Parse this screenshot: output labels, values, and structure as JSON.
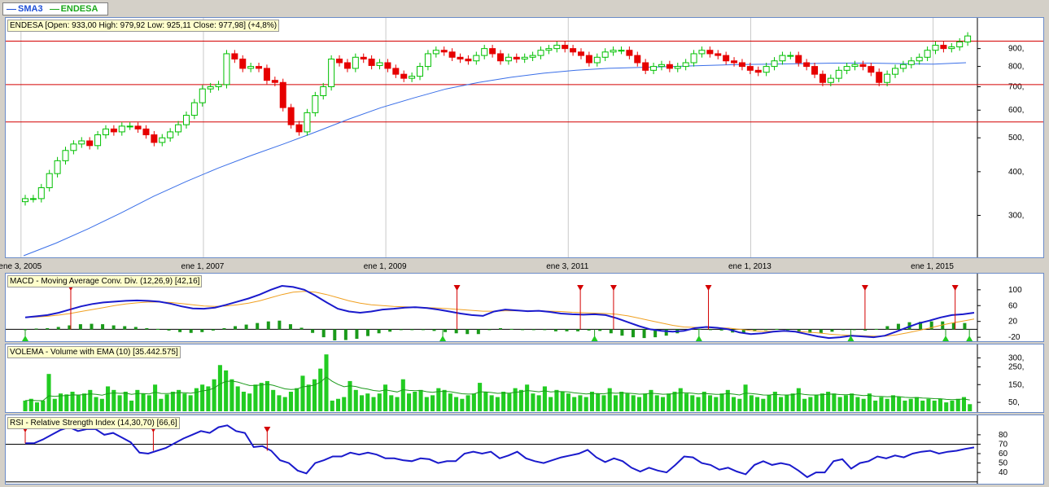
{
  "legend": [
    {
      "label": "SMA3",
      "color": "#1f4fd6"
    },
    {
      "label": "ENDESA",
      "color": "#1aa81a"
    }
  ],
  "colors": {
    "up": "#00c000",
    "down": "#e60000",
    "sma": "#3a6fe8",
    "macd": "#1a1acc",
    "signal": "#f0a020",
    "volume": "#22cc22",
    "rsi": "#1a1acc",
    "hline": "#d40000"
  },
  "chart_data": [
    {
      "type": "candlestick",
      "title": "ENDESA [Open: 933,00  High: 979,92  Low: 925,11  Close: 977,98] (+4,8%)",
      "scale": "log",
      "ylim": [
        230,
        1000
      ],
      "yticks": [
        "900,",
        "800,",
        "700,",
        "600,",
        "500,",
        "400,",
        "300,"
      ],
      "ytick_values": [
        900,
        800,
        700,
        600,
        500,
        400,
        300
      ],
      "xticks": [
        "ene 3, 2005",
        "ene 1, 2007",
        "ene 1, 2009",
        "ene 3, 2011",
        "ene 1, 2013",
        "ene 1, 2015"
      ],
      "xtick_values": [
        2005.0,
        2007.0,
        2009.0,
        2011.0,
        2013.0,
        2015.0
      ],
      "xlim": [
        2004.85,
        2015.45
      ],
      "horizontal_lines": [
        945,
        710,
        555
      ],
      "closes": [
        335,
        335,
        360,
        395,
        430,
        460,
        480,
        490,
        475,
        510,
        530,
        520,
        540,
        540,
        530,
        510,
        485,
        500,
        520,
        545,
        580,
        630,
        690,
        700,
        710,
        870,
        840,
        790,
        800,
        790,
        730,
        720,
        610,
        545,
        520,
        590,
        660,
        700,
        840,
        820,
        790,
        850,
        840,
        805,
        820,
        790,
        760,
        740,
        750,
        800,
        870,
        890,
        880,
        850,
        840,
        830,
        860,
        900,
        870,
        830,
        850,
        840,
        850,
        860,
        890,
        900,
        920,
        900,
        880,
        860,
        820,
        850,
        880,
        890,
        890,
        860,
        820,
        780,
        800,
        810,
        790,
        800,
        820,
        870,
        890,
        870,
        860,
        830,
        820,
        800,
        780,
        770,
        800,
        830,
        860,
        860,
        820,
        800,
        760,
        720,
        740,
        780,
        800,
        810,
        800,
        770,
        720,
        760,
        790,
        810,
        830,
        850,
        890,
        920,
        900,
        910,
        940,
        978
      ],
      "ma_start": 230,
      "ma_end": 820,
      "ma_values": [
        230,
        250,
        275,
        305,
        340,
        375,
        410,
        445,
        480,
        520,
        565,
        610,
        650,
        690,
        720,
        745,
        765,
        780,
        790,
        795,
        800,
        805,
        810,
        812,
        815,
        818,
        818,
        815,
        812,
        820
      ]
    },
    {
      "type": "macd",
      "title": "MACD - Moving Average Conv. Div. (12,26,9) [42,16]",
      "ylim": [
        -28,
        112
      ],
      "yticks": [
        "100",
        "60",
        "20",
        "-20"
      ],
      "ytick_values": [
        100,
        60,
        20,
        -20
      ],
      "macd": [
        30,
        33,
        36,
        42,
        50,
        58,
        64,
        68,
        70,
        72,
        73,
        72,
        70,
        65,
        58,
        53,
        52,
        55,
        62,
        70,
        78,
        88,
        100,
        110,
        107,
        100,
        85,
        68,
        52,
        45,
        42,
        45,
        50,
        52,
        55,
        56,
        54,
        50,
        45,
        40,
        36,
        34,
        45,
        50,
        48,
        46,
        47,
        44,
        40,
        38,
        37,
        38,
        36,
        28,
        18,
        8,
        0,
        -4,
        -6,
        -4,
        3,
        6,
        4,
        0,
        -8,
        -12,
        -10,
        -6,
        -4,
        -6,
        -12,
        -18,
        -22,
        -20,
        -16,
        -18,
        -20,
        -16,
        -6,
        5,
        15,
        22,
        30,
        36,
        38,
        42
      ],
      "signal": [
        30,
        31,
        33,
        36,
        40,
        45,
        50,
        55,
        60,
        64,
        67,
        69,
        69,
        68,
        65,
        62,
        59,
        58,
        59,
        62,
        66,
        72,
        80,
        88,
        94,
        96,
        94,
        88,
        80,
        72,
        66,
        62,
        60,
        58,
        57,
        56,
        55,
        54,
        52,
        50,
        48,
        46,
        46,
        47,
        47,
        47,
        47,
        46,
        45,
        43,
        42,
        41,
        40,
        38,
        34,
        28,
        22,
        16,
        10,
        6,
        5,
        5,
        4,
        3,
        0,
        -3,
        -5,
        -5,
        -5,
        -5,
        -7,
        -9,
        -12,
        -14,
        -15,
        -16,
        -17,
        -17,
        -14,
        -9,
        -3,
        3,
        10,
        16,
        21,
        26
      ],
      "histogram": [
        0,
        2,
        3,
        6,
        10,
        13,
        14,
        13,
        10,
        8,
        6,
        3,
        1,
        -3,
        -7,
        -9,
        -7,
        -3,
        3,
        8,
        12,
        16,
        20,
        22,
        13,
        4,
        -9,
        -20,
        -28,
        -27,
        -24,
        -17,
        -10,
        -6,
        -2,
        0,
        -1,
        -4,
        -7,
        -10,
        -12,
        -12,
        -1,
        3,
        1,
        -1,
        0,
        -2,
        -5,
        -5,
        -5,
        -3,
        -4,
        -10,
        -16,
        -20,
        -22,
        -20,
        -16,
        -10,
        -2,
        1,
        0,
        -3,
        -8,
        -9,
        -5,
        -1,
        1,
        -1,
        -5,
        -9,
        -10,
        -6,
        -1,
        -2,
        -3,
        1,
        8,
        14,
        18,
        19,
        20,
        20,
        17,
        16
      ],
      "sell_markers": [
        0.048,
        0.455,
        0.585,
        0.62,
        0.72,
        0.885,
        0.98
      ],
      "buy_markers": [
        0.0,
        0.44,
        0.6,
        0.71,
        0.87,
        0.97,
        0.995
      ]
    },
    {
      "type": "bar",
      "title": "VOLEMA - Volume with EMA (10) [35.442.575]",
      "ylim": [
        0,
        330
      ],
      "yticks": [
        "300,",
        "250,",
        "150,",
        "50,"
      ],
      "ytick_values": [
        300,
        250,
        150,
        50
      ],
      "values": [
        60,
        70,
        50,
        60,
        210,
        70,
        100,
        95,
        110,
        90,
        100,
        120,
        80,
        70,
        140,
        120,
        90,
        110,
        60,
        120,
        100,
        90,
        150,
        70,
        95,
        110,
        120,
        100,
        90,
        130,
        150,
        140,
        180,
        260,
        230,
        180,
        140,
        110,
        100,
        150,
        160,
        170,
        120,
        90,
        80,
        110,
        130,
        200,
        150,
        180,
        240,
        320,
        60,
        70,
        80,
        170,
        120,
        90,
        100,
        80,
        100,
        150,
        90,
        80,
        180,
        100,
        110,
        120,
        80,
        90,
        130,
        120,
        100,
        80,
        70,
        90,
        100,
        160,
        110,
        90,
        80,
        110,
        100,
        130,
        120,
        150,
        100,
        90,
        140,
        80,
        120,
        110,
        100,
        80,
        90,
        80,
        110,
        100,
        90,
        130,
        90,
        110,
        100,
        90,
        80,
        100,
        120,
        90,
        80,
        100,
        110,
        130,
        100,
        90,
        80,
        110,
        90,
        80,
        100,
        120,
        80,
        70,
        150,
        90,
        80,
        70,
        90,
        110,
        80,
        90,
        100,
        130,
        70,
        80,
        90,
        100,
        110,
        100,
        80,
        90,
        100,
        80,
        70,
        100,
        60,
        80,
        70,
        90,
        80,
        60,
        70,
        80,
        60,
        70,
        60,
        70,
        50,
        60,
        70,
        80,
        40
      ],
      "ema_label": "EMA (10)"
    },
    {
      "type": "line",
      "title": "RSI - Relative Strength Index (14,30,70) [66,6]",
      "ylim": [
        28,
        92
      ],
      "yticks": [
        "80",
        "70",
        "60",
        "50",
        "40"
      ],
      "ytick_values": [
        80,
        70,
        60,
        50,
        40
      ],
      "horizontal_lines": [
        70,
        30
      ],
      "values": [
        71,
        71,
        75,
        80,
        85,
        88,
        84,
        86,
        86,
        80,
        82,
        77,
        72,
        61,
        60,
        63,
        66,
        71,
        76,
        80,
        84,
        82,
        88,
        90,
        84,
        82,
        67,
        68,
        63,
        53,
        50,
        42,
        39,
        50,
        53,
        57,
        57,
        61,
        59,
        61,
        59,
        55,
        55,
        53,
        52,
        55,
        54,
        50,
        52,
        52,
        60,
        62,
        60,
        62,
        55,
        58,
        62,
        55,
        52,
        50,
        53,
        56,
        58,
        60,
        64,
        56,
        51,
        55,
        52,
        45,
        41,
        45,
        42,
        40,
        48,
        57,
        56,
        50,
        48,
        43,
        45,
        41,
        38,
        48,
        52,
        48,
        50,
        48,
        42,
        35,
        40,
        40,
        52,
        54,
        44,
        50,
        52,
        57,
        55,
        58,
        56,
        60,
        62,
        63,
        60,
        62,
        63,
        65,
        66.6
      ],
      "sell_markers": [
        0.0,
        0.135,
        0.255
      ]
    }
  ]
}
